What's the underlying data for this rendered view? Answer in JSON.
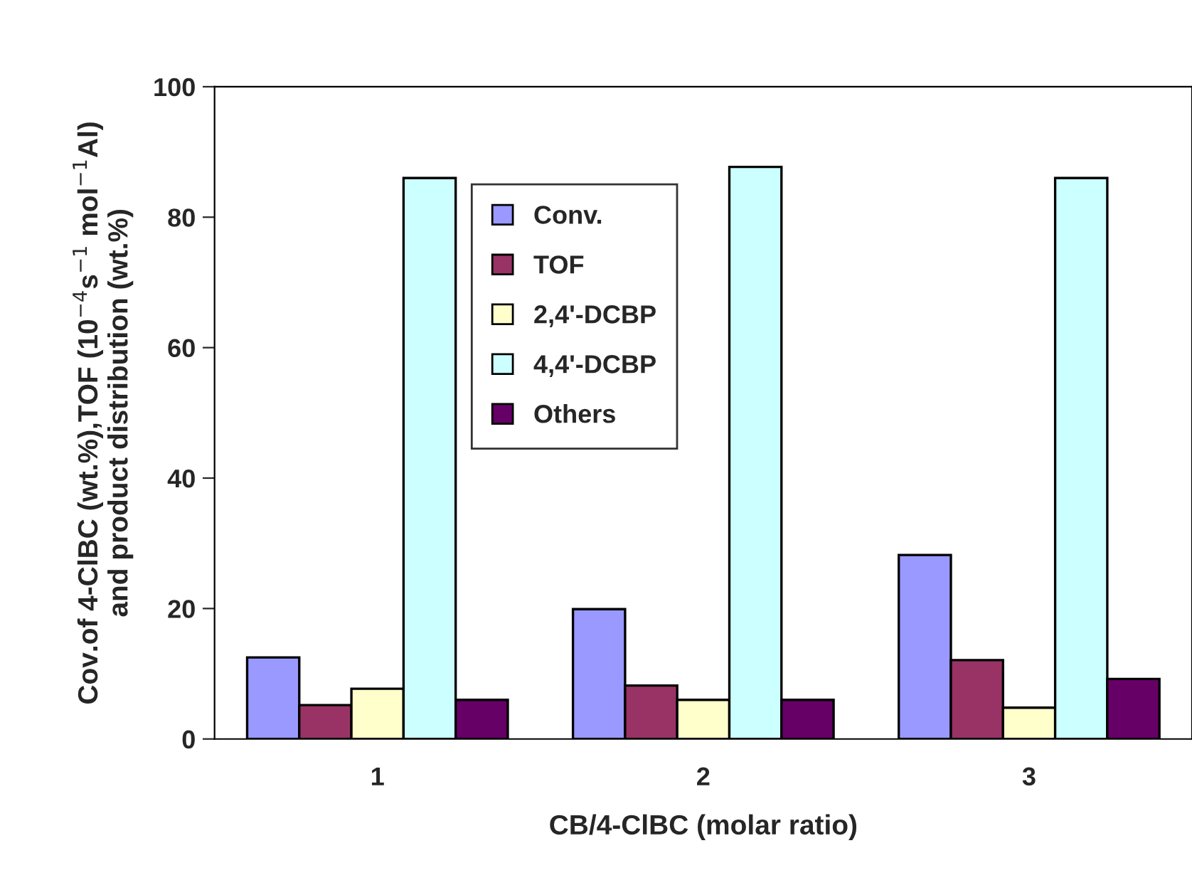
{
  "chart_data": {
    "type": "bar",
    "xlabel": "CB/4-ClBC (molar ratio)",
    "ylabel": "Cov.of 4-ClBC (wt.%),TOF (10$^{−4}$s$^{−1}$ mol$^{−1}$Al)\nand product distribution (wt.%)",
    "categories": [
      "1",
      "2",
      "3"
    ],
    "series": [
      {
        "name": "Conv.",
        "color": "#9999ff",
        "values": [
          12.5,
          19.9,
          28.2
        ]
      },
      {
        "name": "TOF",
        "color": "#993366",
        "values": [
          5.2,
          8.2,
          12.1
        ]
      },
      {
        "name": "2,4'-DCBP",
        "color": "#ffffcc",
        "values": [
          7.7,
          6.0,
          4.8
        ]
      },
      {
        "name": "4,4'-DCBP",
        "color": "#ccffff",
        "values": [
          86,
          87.7,
          86
        ]
      },
      {
        "name": "Others",
        "color": "#660066",
        "values": [
          6.0,
          6.0,
          9.2
        ]
      }
    ],
    "ylim": [
      0,
      100
    ],
    "yticks": [
      0,
      20,
      40,
      60,
      80,
      100
    ],
    "grid": false,
    "legend": "top left"
  }
}
